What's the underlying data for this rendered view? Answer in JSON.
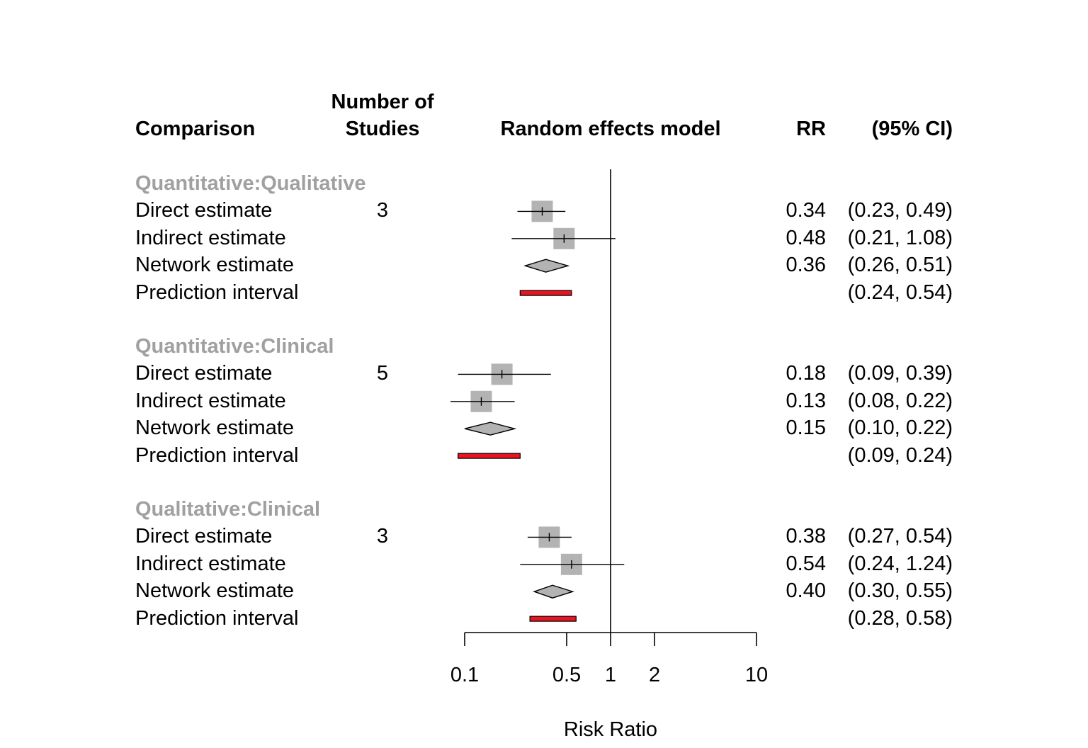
{
  "headers": {
    "comparison": "Comparison",
    "studies_line1": "Number of",
    "studies_line2": "Studies",
    "model": "Random effects model",
    "rr": "RR",
    "ci": "(95% CI)"
  },
  "chart_data": {
    "type": "forest",
    "xlabel": "Risk Ratio",
    "x_scale": "log",
    "xlim": [
      0.1,
      10
    ],
    "x_ticks": [
      0.1,
      0.5,
      1,
      2,
      10
    ],
    "x_tick_labels": [
      "0.1",
      "0.5",
      "1",
      "2",
      "10"
    ],
    "reference_line": 1,
    "colors": {
      "square": "#b3b3b3",
      "diamond": "#b3b3b3",
      "prediction": "#e8141f",
      "group_label": "#a0a0a0"
    },
    "groups": [
      {
        "name": "Quantitative:Qualitative",
        "rows": [
          {
            "label": "Direct estimate",
            "n": "3",
            "kind": "square",
            "est": 0.34,
            "lo": 0.23,
            "hi": 0.49,
            "rr": "0.34",
            "ci": "(0.23, 0.49)"
          },
          {
            "label": "Indirect estimate",
            "n": "",
            "kind": "square",
            "est": 0.48,
            "lo": 0.21,
            "hi": 1.08,
            "rr": "0.48",
            "ci": "(0.21, 1.08)"
          },
          {
            "label": "Network estimate",
            "n": "",
            "kind": "diamond",
            "est": 0.36,
            "lo": 0.26,
            "hi": 0.51,
            "rr": "0.36",
            "ci": "(0.26, 0.51)"
          },
          {
            "label": "Prediction interval",
            "n": "",
            "kind": "prediction",
            "est": null,
            "lo": 0.24,
            "hi": 0.54,
            "rr": "",
            "ci": "(0.24, 0.54)"
          }
        ]
      },
      {
        "name": "Quantitative:Clinical",
        "rows": [
          {
            "label": "Direct estimate",
            "n": "5",
            "kind": "square",
            "est": 0.18,
            "lo": 0.09,
            "hi": 0.39,
            "rr": "0.18",
            "ci": "(0.09, 0.39)"
          },
          {
            "label": "Indirect estimate",
            "n": "",
            "kind": "square",
            "est": 0.13,
            "lo": 0.08,
            "hi": 0.22,
            "rr": "0.13",
            "ci": "(0.08, 0.22)"
          },
          {
            "label": "Network estimate",
            "n": "",
            "kind": "diamond",
            "est": 0.15,
            "lo": 0.1,
            "hi": 0.22,
            "rr": "0.15",
            "ci": "(0.10, 0.22)"
          },
          {
            "label": "Prediction interval",
            "n": "",
            "kind": "prediction",
            "est": null,
            "lo": 0.09,
            "hi": 0.24,
            "rr": "",
            "ci": "(0.09, 0.24)"
          }
        ]
      },
      {
        "name": "Qualitative:Clinical",
        "rows": [
          {
            "label": "Direct estimate",
            "n": "3",
            "kind": "square",
            "est": 0.38,
            "lo": 0.27,
            "hi": 0.54,
            "rr": "0.38",
            "ci": "(0.27, 0.54)"
          },
          {
            "label": "Indirect estimate",
            "n": "",
            "kind": "square",
            "est": 0.54,
            "lo": 0.24,
            "hi": 1.24,
            "rr": "0.54",
            "ci": "(0.24, 1.24)"
          },
          {
            "label": "Network estimate",
            "n": "",
            "kind": "diamond",
            "est": 0.4,
            "lo": 0.3,
            "hi": 0.55,
            "rr": "0.40",
            "ci": "(0.30, 0.55)"
          },
          {
            "label": "Prediction interval",
            "n": "",
            "kind": "prediction",
            "est": null,
            "lo": 0.28,
            "hi": 0.58,
            "rr": "",
            "ci": "(0.28, 0.58)"
          }
        ]
      }
    ]
  }
}
